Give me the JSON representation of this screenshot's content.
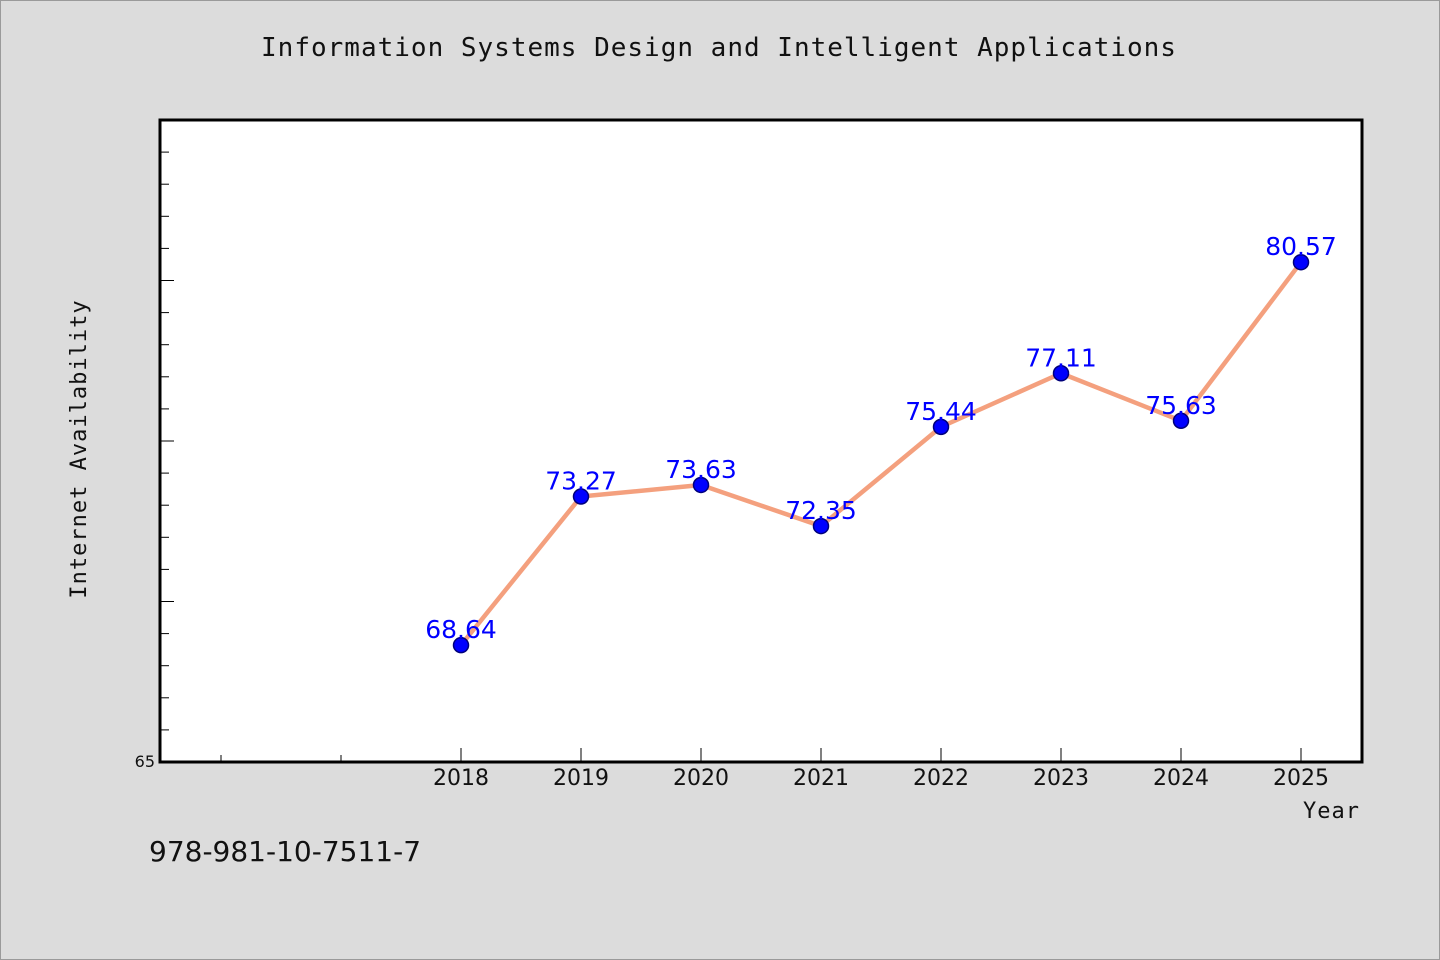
{
  "chart_data": {
    "type": "line",
    "title": "Information Systems Design and Intelligent Applications",
    "xlabel": "Year",
    "ylabel": "Internet Availability",
    "x": [
      "2018",
      "2019",
      "2020",
      "2021",
      "2022",
      "2023",
      "2024",
      "2025"
    ],
    "series": [
      {
        "values": [
          68.64,
          73.27,
          73.63,
          72.35,
          75.44,
          77.11,
          75.63,
          80.57
        ],
        "labels": [
          "68.64",
          "73.27",
          "73.63",
          "72.35",
          "75.44",
          "77.11",
          "75.63",
          "80.57"
        ],
        "line_color": "#f4a07e",
        "marker_color": "#0000ff"
      }
    ],
    "ylim": [
      65,
      85
    ],
    "y_tick_labels": [
      "65"
    ],
    "grid": false
  },
  "footer": {
    "isbn": "978-981-10-7511-7"
  },
  "colors": {
    "background": "#dcdcdc",
    "plot_background": "#ffffff",
    "data_label": "#0000ff"
  }
}
